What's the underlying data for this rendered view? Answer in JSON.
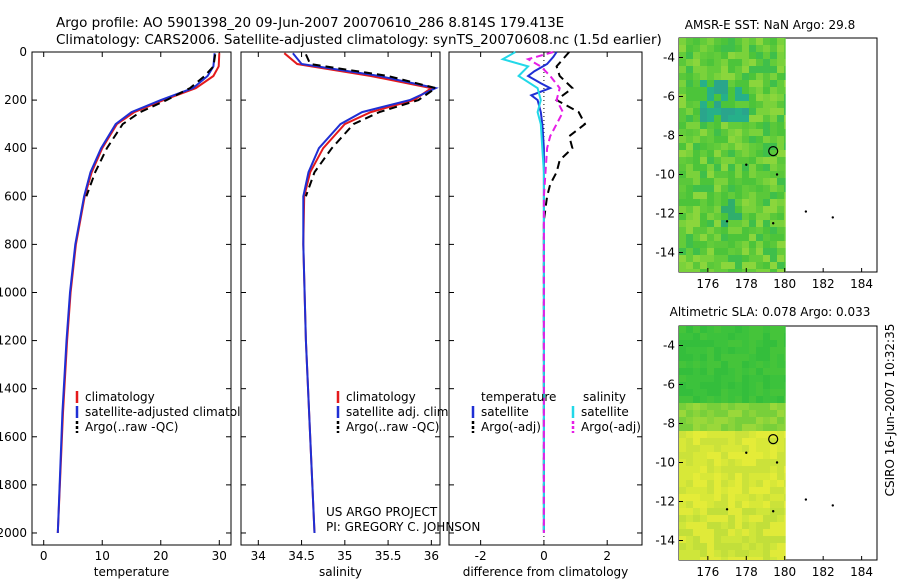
{
  "header": {
    "line1": "Argo profile: AO 5901398_20 09-Jun-2007 20070610_286 8.814S 179.413E",
    "line2": "Climatology: CARS2006. Satellite-adjusted climatology: synTS_20070608.nc (1.5d earlier)"
  },
  "side_label": "CSIRO 16-Jun-2007 10:32:35",
  "credit": {
    "line1": "US ARGO PROJECT",
    "line2": "PI: GREGORY C. JOHNSON"
  },
  "colors": {
    "clim": "#e41a1c",
    "sat": "#1f2fd4",
    "argo": "#000000",
    "sat_sal": "#22d8e8",
    "argo_sal": "#e61ee6"
  },
  "chart_data": [
    {
      "id": "temperature",
      "type": "line",
      "xlabel": "temperature",
      "xlim": [
        -2,
        32
      ],
      "ylim": [
        2050,
        0
      ],
      "xticks": [
        "0",
        "10",
        "20",
        "30"
      ],
      "yticks": [
        "0",
        "200",
        "400",
        "600",
        "800",
        "1000",
        "1200",
        "1400",
        "1600",
        "1800",
        "2000"
      ],
      "legend": [
        "climatology",
        "satellite-adjusted climatolog",
        "Argo(..raw -QC)"
      ],
      "series": [
        {
          "name": "climatology",
          "style": "clim",
          "depth": [
            5,
            60,
            100,
            150,
            200,
            250,
            300,
            400,
            500,
            600,
            800,
            1000,
            1200,
            1500,
            2000
          ],
          "values": [
            30.0,
            29.9,
            29.0,
            26.0,
            20.5,
            15.5,
            12.5,
            10.0,
            8.2,
            7.0,
            5.5,
            4.6,
            4.0,
            3.3,
            2.4
          ]
        },
        {
          "name": "satellite-adjusted climatology",
          "style": "sat",
          "depth": [
            5,
            60,
            100,
            150,
            200,
            250,
            300,
            400,
            500,
            600,
            800,
            1000,
            1200,
            1500,
            2000
          ],
          "values": [
            29.2,
            29.0,
            28.0,
            25.5,
            20.0,
            15.0,
            12.3,
            9.8,
            8.0,
            6.9,
            5.4,
            4.5,
            3.9,
            3.2,
            2.4
          ]
        },
        {
          "name": "Argo(..raw -QC)",
          "style": "argo",
          "depth": [
            10,
            60,
            100,
            150,
            200,
            250,
            300,
            400,
            500,
            600
          ],
          "values": [
            29.3,
            29.0,
            27.5,
            25.0,
            21.0,
            16.5,
            13.5,
            10.8,
            8.8,
            7.3
          ]
        }
      ]
    },
    {
      "id": "salinity",
      "type": "line",
      "xlabel": "salinity",
      "xlim": [
        33.8,
        36.1
      ],
      "ylim": [
        2050,
        0
      ],
      "xticks": [
        "34",
        "34.5",
        "35",
        "35.5",
        "36"
      ],
      "legend": [
        "climatology",
        "satellite adj. clim.",
        "Argo(..raw -QC)"
      ],
      "series": [
        {
          "name": "climatology",
          "style": "clim",
          "depth": [
            5,
            50,
            100,
            150,
            200,
            250,
            300,
            400,
            500,
            600,
            800,
            1200,
            1600,
            2000
          ],
          "values": [
            34.3,
            34.45,
            35.3,
            36.0,
            35.8,
            35.3,
            35.0,
            34.75,
            34.6,
            34.53,
            34.52,
            34.55,
            34.6,
            34.65
          ]
        },
        {
          "name": "satellite adj. clim.",
          "style": "sat",
          "depth": [
            5,
            50,
            100,
            150,
            200,
            250,
            300,
            400,
            500,
            600,
            800,
            1200,
            1600,
            2000
          ],
          "values": [
            34.4,
            34.5,
            35.4,
            36.05,
            35.75,
            35.2,
            34.95,
            34.7,
            34.58,
            34.52,
            34.52,
            34.55,
            34.6,
            34.65
          ]
        },
        {
          "name": "Argo(..raw -QC)",
          "style": "argo",
          "depth": [
            10,
            50,
            100,
            150,
            200,
            250,
            300,
            400,
            500,
            600
          ],
          "values": [
            34.55,
            34.6,
            35.5,
            36.05,
            35.85,
            35.4,
            35.1,
            34.85,
            34.65,
            34.55
          ]
        }
      ]
    },
    {
      "id": "difference",
      "type": "line",
      "xlabel": "difference from climatology",
      "xlim": [
        -3,
        3.1
      ],
      "ylim": [
        2050,
        0
      ],
      "xticks": [
        "-2",
        "0",
        "2"
      ],
      "legend_left_title": "temperature",
      "legend_right_title": "salinity",
      "legend": [
        "satellite",
        "Argo(-adj)",
        "satellite",
        "Argo(-adj)"
      ],
      "series": [
        {
          "name": "temperature satellite",
          "style": "sat",
          "depth": [
            0,
            20,
            50,
            80,
            100,
            130,
            150,
            180,
            200,
            250,
            300,
            400,
            500,
            600,
            800,
            1500,
            2000
          ],
          "values": [
            0.4,
            0.3,
            0.1,
            -0.3,
            -0.5,
            -0.1,
            0.2,
            -0.4,
            -0.2,
            -0.1,
            -0.05,
            0,
            0,
            0,
            0,
            0,
            0
          ]
        },
        {
          "name": "temperature Argo(-adj)",
          "style": "argo",
          "depth": [
            0,
            30,
            60,
            100,
            150,
            200,
            250,
            300,
            350,
            400,
            450,
            500,
            550,
            600,
            700,
            800,
            1000,
            2000
          ],
          "values": [
            0.8,
            0.6,
            0.4,
            0.5,
            0.9,
            0.4,
            1.1,
            1.3,
            0.8,
            0.9,
            0.5,
            0.4,
            0.2,
            0.1,
            0,
            0,
            0,
            0
          ]
        },
        {
          "name": "salinity satellite",
          "style": "sat_sal",
          "depth": [
            0,
            30,
            60,
            100,
            150,
            200,
            250,
            300,
            400,
            500,
            600,
            800,
            1500,
            2000
          ],
          "values": [
            -0.9,
            -1.3,
            -0.5,
            -0.8,
            -0.2,
            -0.1,
            -0.2,
            -0.1,
            -0.05,
            0,
            0,
            0,
            0,
            0
          ]
        },
        {
          "name": "salinity Argo(-adj)",
          "style": "argo_sal",
          "depth": [
            0,
            30,
            60,
            100,
            150,
            200,
            250,
            300,
            350,
            400,
            500,
            600,
            800,
            1000,
            2000
          ],
          "values": [
            0.3,
            -0.5,
            -0.1,
            0.2,
            0.5,
            0.4,
            0.6,
            0.4,
            0.2,
            0.1,
            0.05,
            0,
            0,
            0,
            0
          ]
        }
      ]
    }
  ],
  "maps": [
    {
      "id": "sst-map",
      "title": "AMSR-E SST: NaN Argo: 29.8",
      "xticks": [
        "176",
        "178",
        "180",
        "182",
        "184"
      ],
      "yticks": [
        "-4",
        "-6",
        "-8",
        "-10",
        "-12",
        "-14"
      ],
      "argo_position": {
        "lon": 179.4,
        "lat": -8.8
      }
    },
    {
      "id": "sla-map",
      "title": "Altimetric SLA: 0.078 Argo: 0.033",
      "xticks": [
        "176",
        "178",
        "180",
        "182",
        "184"
      ],
      "yticks": [
        "-4",
        "-6",
        "-8",
        "-10",
        "-12",
        "-14"
      ],
      "argo_position": {
        "lon": 179.4,
        "lat": -8.8
      }
    }
  ]
}
